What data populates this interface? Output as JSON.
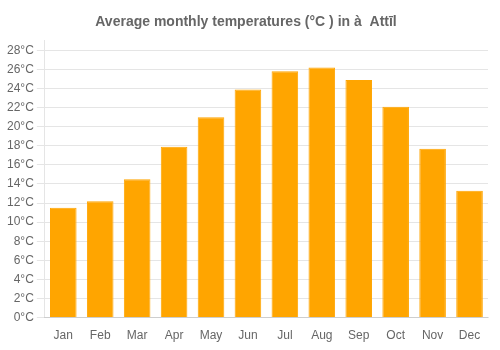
{
  "chart_data": {
    "type": "bar",
    "title": "Average monthly temperatures (°C ) in à  Attīl",
    "categories": [
      "Jan",
      "Feb",
      "Mar",
      "Apr",
      "May",
      "Jun",
      "Jul",
      "Aug",
      "Sep",
      "Oct",
      "Nov",
      "Dec"
    ],
    "values": [
      11.5,
      12.2,
      14.5,
      17.9,
      21.0,
      23.9,
      25.8,
      26.2,
      24.9,
      22.1,
      17.7,
      13.3
    ],
    "color": "#FFA500",
    "ylim": [
      0,
      29
    ],
    "yticks": [
      {
        "value": 0,
        "label": "0°C"
      },
      {
        "value": 2,
        "label": "2°C"
      },
      {
        "value": 4,
        "label": "4°C"
      },
      {
        "value": 6,
        "label": "6°C"
      },
      {
        "value": 8,
        "label": "8°C"
      },
      {
        "value": 10,
        "label": "10°C"
      },
      {
        "value": 12,
        "label": "12°C"
      },
      {
        "value": 14,
        "label": "14°C"
      },
      {
        "value": 16,
        "label": "16°C"
      },
      {
        "value": 18,
        "label": "18°C"
      },
      {
        "value": 20,
        "label": "20°C"
      },
      {
        "value": 22,
        "label": "22°C"
      },
      {
        "value": 24,
        "label": "24°C"
      },
      {
        "value": 26,
        "label": "26°C"
      },
      {
        "value": 28,
        "label": "28°C"
      }
    ],
    "grid": true
  }
}
